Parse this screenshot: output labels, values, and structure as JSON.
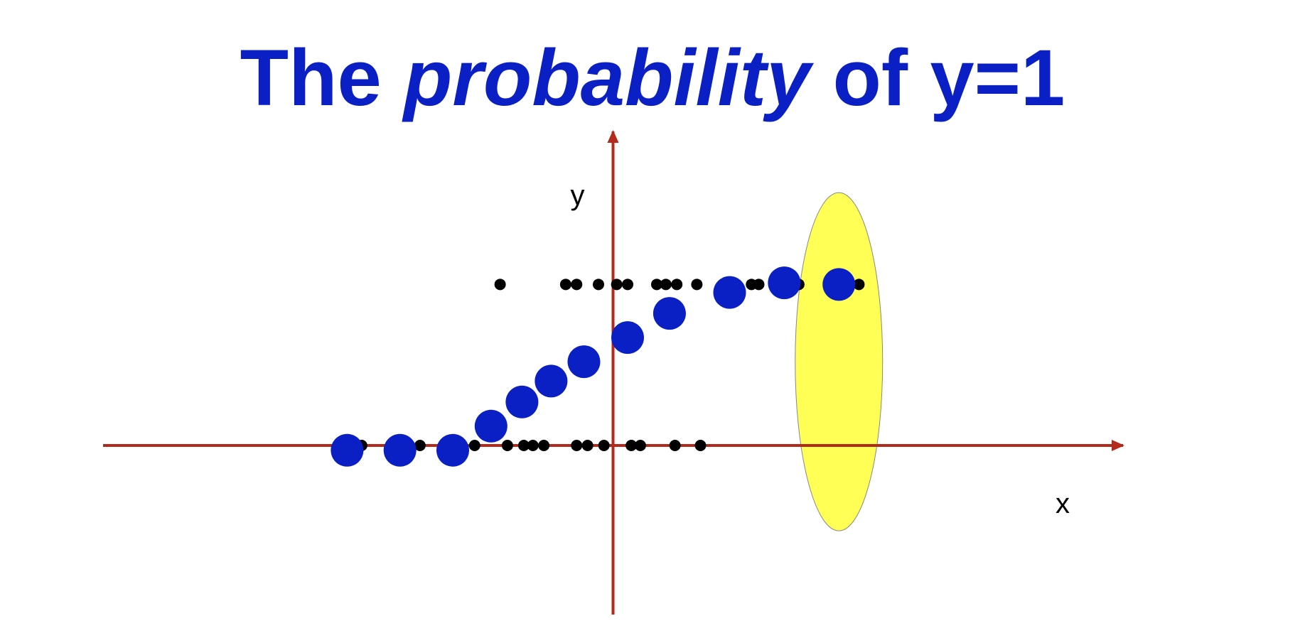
{
  "chart_data": {
    "type": "scatter",
    "title": {
      "before": "The ",
      "emphasis": "probability",
      "after": " of y=1"
    },
    "xlabel": "x",
    "ylabel": "y",
    "xlim": [
      -14,
      14
    ],
    "ylim": [
      -1.05,
      1.95
    ],
    "grid": false,
    "legend": "none",
    "colors": {
      "title": "#0a1fc4",
      "axes": "#b22a1c",
      "observations": "#000000",
      "probability": "#0a1fc4",
      "highlight_fill": "#ffff55",
      "highlight_stroke": "#888888"
    },
    "series": [
      {
        "values": [
          [
            -3.1,
            1.0
          ],
          [
            -1.3,
            1.0
          ],
          [
            -1.0,
            1.0
          ],
          [
            -0.4,
            1.0
          ],
          [
            0.1,
            1.0
          ],
          [
            0.4,
            1.0
          ],
          [
            1.2,
            1.0
          ],
          [
            1.45,
            1.0
          ],
          [
            1.75,
            1.0
          ],
          [
            2.3,
            1.0
          ],
          [
            3.8,
            1.0
          ],
          [
            4.0,
            1.0
          ],
          [
            5.1,
            1.0
          ],
          [
            6.75,
            1.0
          ],
          [
            -6.9,
            0.0
          ],
          [
            -5.6,
            0.0
          ],
          [
            -5.3,
            0.0
          ],
          [
            -3.8,
            0.0
          ],
          [
            -2.9,
            0.0
          ],
          [
            -2.45,
            0.0
          ],
          [
            -2.2,
            0.0
          ],
          [
            -1.9,
            0.0
          ],
          [
            -1.0,
            0.0
          ],
          [
            -0.7,
            0.0
          ],
          [
            -0.25,
            0.0
          ],
          [
            0.5,
            0.0
          ],
          [
            0.75,
            0.0
          ],
          [
            1.7,
            0.0
          ],
          [
            2.4,
            0.0
          ]
        ]
      },
      {
        "values": [
          [
            -7.3,
            -0.03
          ],
          [
            -5.85,
            -0.03
          ],
          [
            -4.4,
            -0.03
          ],
          [
            -3.35,
            0.12
          ],
          [
            -2.5,
            0.27
          ],
          [
            -1.7,
            0.4
          ],
          [
            -0.8,
            0.52
          ],
          [
            0.4,
            0.67
          ],
          [
            1.55,
            0.82
          ],
          [
            3.2,
            0.95
          ],
          [
            4.7,
            1.01
          ],
          [
            6.2,
            1.0
          ]
        ]
      }
    ],
    "highlight": {
      "x": 6.2,
      "y": 0.52,
      "rx": 1.2,
      "ry": 1.05
    }
  }
}
